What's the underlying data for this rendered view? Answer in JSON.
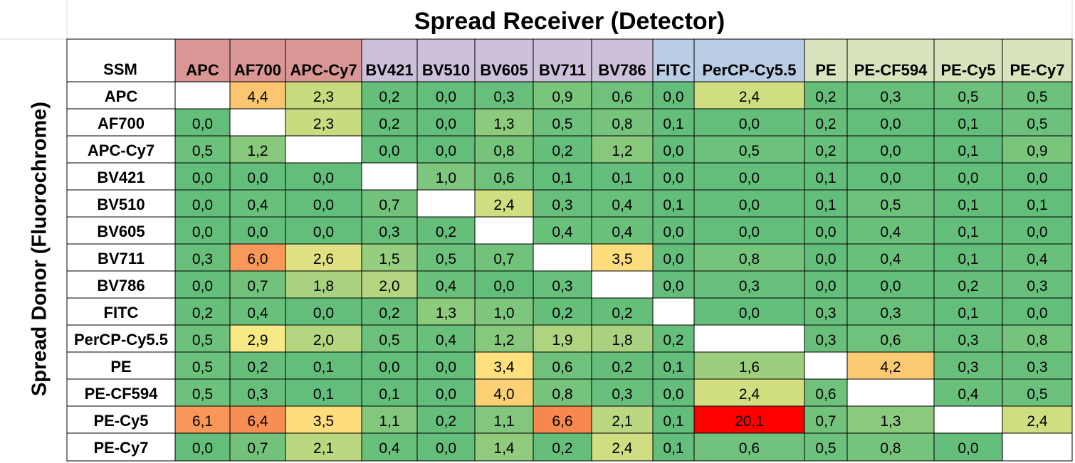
{
  "chart_data": {
    "type": "heatmap",
    "title": "Spread Receiver (Detector)",
    "ylabel": "Spread Donor (Fluorochrome)",
    "corner_label": "SSM",
    "columns": [
      "APC",
      "AF700",
      "APC-Cy7",
      "BV421",
      "BV510",
      "BV605",
      "BV711",
      "BV786",
      "FITC",
      "PerCP-Cy5.5",
      "PE",
      "PE-CF594",
      "PE-Cy5",
      "PE-Cy7"
    ],
    "column_group_colors": [
      "#d99694",
      "#d99694",
      "#d99694",
      "#ccc0da",
      "#ccc0da",
      "#ccc0da",
      "#ccc0da",
      "#ccc0da",
      "#b9cde5",
      "#b9cde5",
      "#d7e4bd",
      "#d7e4bd",
      "#d7e4bd",
      "#d7e4bd"
    ],
    "rows": [
      "APC",
      "AF700",
      "APC-Cy7",
      "BV421",
      "BV510",
      "BV605",
      "BV711",
      "BV786",
      "FITC",
      "PerCP-Cy5.5",
      "PE",
      "PE-CF594",
      "PE-Cy5",
      "PE-Cy7"
    ],
    "values": [
      [
        "",
        "4,4",
        "2,3",
        "0,2",
        "0,0",
        "0,3",
        "0,9",
        "0,6",
        "0,0",
        "2,4",
        "0,2",
        "0,3",
        "0,5",
        "0,5"
      ],
      [
        "0,0",
        "",
        "2,3",
        "0,2",
        "0,0",
        "1,3",
        "0,5",
        "0,8",
        "0,1",
        "0,0",
        "0,2",
        "0,0",
        "0,1",
        "0,5"
      ],
      [
        "0,5",
        "1,2",
        "",
        "0,0",
        "0,0",
        "0,8",
        "0,2",
        "1,2",
        "0,0",
        "0,5",
        "0,2",
        "0,0",
        "0,1",
        "0,9"
      ],
      [
        "0,0",
        "0,0",
        "0,0",
        "",
        "1,0",
        "0,6",
        "0,1",
        "0,1",
        "0,0",
        "0,0",
        "0,1",
        "0,0",
        "0,0",
        "0,0"
      ],
      [
        "0,0",
        "0,4",
        "0,0",
        "0,7",
        "",
        "2,4",
        "0,3",
        "0,4",
        "0,1",
        "0,0",
        "0,1",
        "0,5",
        "0,1",
        "0,1"
      ],
      [
        "0,0",
        "0,0",
        "0,0",
        "0,3",
        "0,2",
        "",
        "0,4",
        "0,4",
        "0,0",
        "0,0",
        "0,0",
        "0,4",
        "0,1",
        "0,0"
      ],
      [
        "0,3",
        "6,0",
        "2,6",
        "1,5",
        "0,5",
        "0,7",
        "",
        "3,5",
        "0,0",
        "0,8",
        "0,0",
        "0,4",
        "0,1",
        "0,4"
      ],
      [
        "0,0",
        "0,7",
        "1,8",
        "2,0",
        "0,4",
        "0,0",
        "0,3",
        "",
        "0,0",
        "0,3",
        "0,0",
        "0,0",
        "0,2",
        "0,3"
      ],
      [
        "0,2",
        "0,4",
        "0,0",
        "0,2",
        "1,3",
        "1,0",
        "0,2",
        "0,2",
        "",
        "0,0",
        "0,3",
        "0,3",
        "0,1",
        "0,0"
      ],
      [
        "0,5",
        "2,9",
        "2,0",
        "0,5",
        "0,4",
        "1,2",
        "1,9",
        "1,8",
        "0,2",
        "",
        "0,3",
        "0,6",
        "0,3",
        "0,8"
      ],
      [
        "0,5",
        "0,2",
        "0,1",
        "0,0",
        "0,0",
        "3,4",
        "0,6",
        "0,2",
        "0,1",
        "1,6",
        "",
        "4,2",
        "0,3",
        "0,3"
      ],
      [
        "0,5",
        "0,3",
        "0,1",
        "0,1",
        "0,0",
        "4,0",
        "0,8",
        "0,3",
        "0,0",
        "2,4",
        "0,6",
        "",
        "0,4",
        "0,5"
      ],
      [
        "6,1",
        "6,4",
        "3,5",
        "1,1",
        "0,2",
        "1,1",
        "6,6",
        "2,1",
        "0,1",
        "20,1",
        "0,7",
        "1,3",
        "",
        "2,4"
      ],
      [
        "0,0",
        "0,7",
        "2,1",
        "0,4",
        "0,0",
        "1,4",
        "0,2",
        "2,4",
        "0,1",
        "0,6",
        "0,5",
        "0,8",
        "0,0",
        ""
      ]
    ]
  }
}
